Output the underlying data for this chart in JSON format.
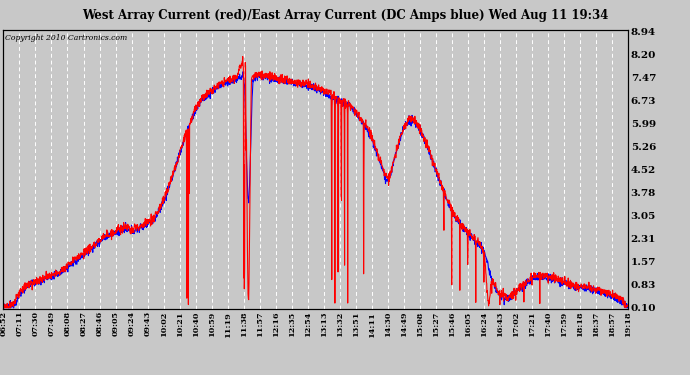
{
  "title": "West Array Current (red)/East Array Current (DC Amps blue) Wed Aug 11 19:34",
  "copyright": "Copyright 2010 Cartronics.com",
  "yticks": [
    0.1,
    0.83,
    1.57,
    2.31,
    3.05,
    3.78,
    4.52,
    5.26,
    5.99,
    6.73,
    7.47,
    8.2,
    8.94
  ],
  "ymin": 0.1,
  "ymax": 8.94,
  "bg_color": "#c8c8c8",
  "plot_bg_color": "#c8c8c8",
  "grid_color": "#ffffff",
  "red_color": "#ff0000",
  "blue_color": "#0000ff",
  "line_width": 0.8,
  "xtick_labels": [
    "06:52",
    "07:11",
    "07:30",
    "07:49",
    "08:08",
    "08:27",
    "08:46",
    "09:05",
    "09:24",
    "09:43",
    "10:02",
    "10:21",
    "10:40",
    "10:59",
    "11:19",
    "11:38",
    "11:57",
    "12:16",
    "12:35",
    "12:54",
    "13:13",
    "13:32",
    "13:51",
    "14:11",
    "14:30",
    "14:49",
    "15:08",
    "15:27",
    "15:46",
    "16:05",
    "16:24",
    "16:43",
    "17:02",
    "17:21",
    "17:40",
    "17:59",
    "18:18",
    "18:37",
    "18:57",
    "19:18"
  ]
}
